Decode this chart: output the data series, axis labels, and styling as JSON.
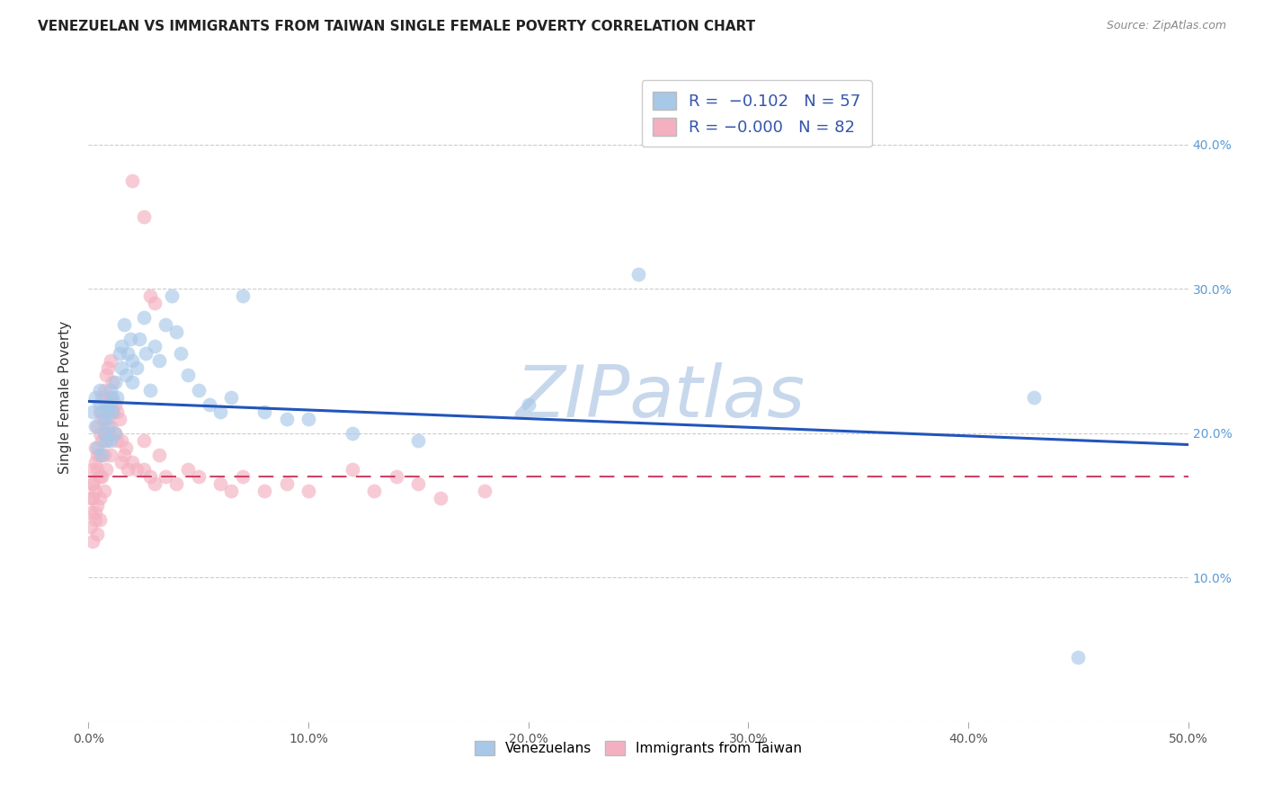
{
  "title": "VENEZUELAN VS IMMIGRANTS FROM TAIWAN SINGLE FEMALE POVERTY CORRELATION CHART",
  "source": "Source: ZipAtlas.com",
  "ylabel": "Single Female Poverty",
  "xlim": [
    0,
    0.5
  ],
  "ylim": [
    0,
    0.45
  ],
  "xticks": [
    0.0,
    0.1,
    0.2,
    0.3,
    0.4,
    0.5
  ],
  "yticks": [
    0.0,
    0.1,
    0.2,
    0.3,
    0.4
  ],
  "xtick_labels": [
    "0.0%",
    "10.0%",
    "20.0%",
    "30.0%",
    "40.0%",
    "50.0%"
  ],
  "ytick_labels_right": [
    "",
    "10.0%",
    "20.0%",
    "30.0%",
    "40.0%"
  ],
  "legend_r_n": [
    {
      "label_r": "R =  -0.102",
      "label_n": "N = 57",
      "color": "#A8C8E8"
    },
    {
      "label_r": "R = -0.000",
      "label_n": "N = 82",
      "color": "#F4B8C8"
    }
  ],
  "legend_labels_bottom": [
    "Venezuelans",
    "Immigrants from Taiwan"
  ],
  "blue_color": "#A8C8E8",
  "pink_color": "#F4B0C0",
  "blue_line_color": "#2255BB",
  "pink_line_color": "#CC4466",
  "watermark": "ZIPatlas",
  "watermark_color": "#C8D8EC",
  "blue_intercept": 0.222,
  "blue_slope": -0.06,
  "pink_intercept": 0.17,
  "pink_slope": 0.0,
  "venezuelan_x": [
    0.002,
    0.003,
    0.003,
    0.004,
    0.005,
    0.005,
    0.006,
    0.006,
    0.007,
    0.007,
    0.008,
    0.008,
    0.009,
    0.009,
    0.01,
    0.01,
    0.01,
    0.011,
    0.011,
    0.012,
    0.012,
    0.013,
    0.014,
    0.015,
    0.015,
    0.016,
    0.017,
    0.018,
    0.019,
    0.02,
    0.02,
    0.022,
    0.023,
    0.025,
    0.026,
    0.028,
    0.03,
    0.032,
    0.035,
    0.038,
    0.04,
    0.042,
    0.045,
    0.05,
    0.055,
    0.06,
    0.065,
    0.07,
    0.08,
    0.09,
    0.1,
    0.12,
    0.15,
    0.2,
    0.25,
    0.43,
    0.45
  ],
  "venezuelan_y": [
    0.215,
    0.225,
    0.205,
    0.19,
    0.23,
    0.22,
    0.215,
    0.185,
    0.2,
    0.21,
    0.195,
    0.22,
    0.215,
    0.205,
    0.23,
    0.22,
    0.195,
    0.225,
    0.215,
    0.235,
    0.2,
    0.225,
    0.255,
    0.245,
    0.26,
    0.275,
    0.24,
    0.255,
    0.265,
    0.235,
    0.25,
    0.245,
    0.265,
    0.28,
    0.255,
    0.23,
    0.26,
    0.25,
    0.275,
    0.295,
    0.27,
    0.255,
    0.24,
    0.23,
    0.22,
    0.215,
    0.225,
    0.295,
    0.215,
    0.21,
    0.21,
    0.2,
    0.195,
    0.22,
    0.31,
    0.225,
    0.045
  ],
  "taiwan_x": [
    0.001,
    0.001,
    0.001,
    0.002,
    0.002,
    0.002,
    0.002,
    0.002,
    0.003,
    0.003,
    0.003,
    0.003,
    0.003,
    0.004,
    0.004,
    0.004,
    0.004,
    0.004,
    0.005,
    0.005,
    0.005,
    0.005,
    0.005,
    0.005,
    0.006,
    0.006,
    0.006,
    0.006,
    0.007,
    0.007,
    0.007,
    0.007,
    0.008,
    0.008,
    0.008,
    0.008,
    0.009,
    0.009,
    0.009,
    0.01,
    0.01,
    0.01,
    0.01,
    0.011,
    0.011,
    0.012,
    0.012,
    0.013,
    0.013,
    0.014,
    0.015,
    0.015,
    0.016,
    0.017,
    0.018,
    0.02,
    0.022,
    0.025,
    0.025,
    0.028,
    0.03,
    0.032,
    0.035,
    0.04,
    0.045,
    0.05,
    0.06,
    0.065,
    0.07,
    0.08,
    0.09,
    0.1,
    0.12,
    0.13,
    0.14,
    0.15,
    0.16,
    0.18,
    0.02,
    0.025,
    0.028,
    0.03
  ],
  "taiwan_y": [
    0.155,
    0.145,
    0.135,
    0.165,
    0.155,
    0.125,
    0.175,
    0.165,
    0.145,
    0.19,
    0.18,
    0.16,
    0.14,
    0.205,
    0.185,
    0.175,
    0.15,
    0.13,
    0.2,
    0.215,
    0.185,
    0.17,
    0.155,
    0.14,
    0.225,
    0.21,
    0.195,
    0.17,
    0.23,
    0.2,
    0.185,
    0.16,
    0.24,
    0.21,
    0.195,
    0.175,
    0.245,
    0.225,
    0.2,
    0.25,
    0.225,
    0.205,
    0.185,
    0.235,
    0.215,
    0.22,
    0.2,
    0.215,
    0.195,
    0.21,
    0.195,
    0.18,
    0.185,
    0.19,
    0.175,
    0.18,
    0.175,
    0.175,
    0.195,
    0.17,
    0.165,
    0.185,
    0.17,
    0.165,
    0.175,
    0.17,
    0.165,
    0.16,
    0.17,
    0.16,
    0.165,
    0.16,
    0.175,
    0.16,
    0.17,
    0.165,
    0.155,
    0.16,
    0.375,
    0.35,
    0.295,
    0.29
  ]
}
